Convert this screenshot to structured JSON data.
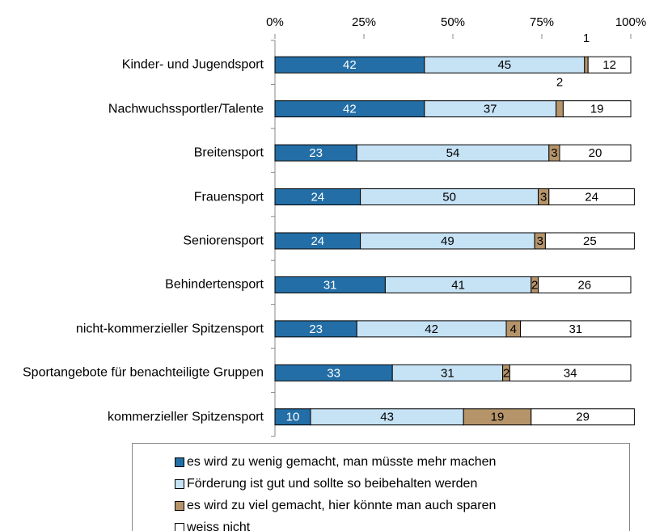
{
  "chart_data": {
    "type": "stacked-barh",
    "categories": [
      "Kinder- und Jugendsport",
      "Nachwuchssportler/Talente",
      "Breitensport",
      "Frauensport",
      "Seniorensport",
      "Behindertensport",
      "nicht-kommerzieller Spitzensport",
      "Sportangebote für benachteiligte Gruppen",
      "kommerzieller Spitzensport"
    ],
    "series": [
      {
        "name": "es wird zu wenig gemacht, man müsste mehr machen",
        "color": "#236ea6",
        "text_color": "#ffffff",
        "values": [
          42,
          42,
          23,
          24,
          24,
          31,
          23,
          33,
          10
        ]
      },
      {
        "name": "Förderung ist gut und sollte so beibehalten werden",
        "color": "#c6e2f5",
        "text_color": "#000000",
        "values": [
          45,
          37,
          54,
          50,
          49,
          41,
          42,
          31,
          43
        ]
      },
      {
        "name": "es wird zu viel gemacht, hier könnte man auch sparen",
        "color": "#b5946a",
        "text_color": "#000000",
        "values": [
          1,
          2,
          3,
          3,
          3,
          2,
          4,
          2,
          19
        ]
      },
      {
        "name": "weiss nicht",
        "color": "#ffffff",
        "text_color": "#000000",
        "values": [
          12,
          19,
          20,
          24,
          25,
          26,
          31,
          34,
          29
        ]
      }
    ],
    "xlim": [
      0,
      100
    ],
    "xticks": [
      {
        "value": 0,
        "label": "0%"
      },
      {
        "value": 25,
        "label": "25%"
      },
      {
        "value": 50,
        "label": "50%"
      },
      {
        "value": 75,
        "label": "75%"
      },
      {
        "value": 100,
        "label": "100%"
      }
    ]
  }
}
